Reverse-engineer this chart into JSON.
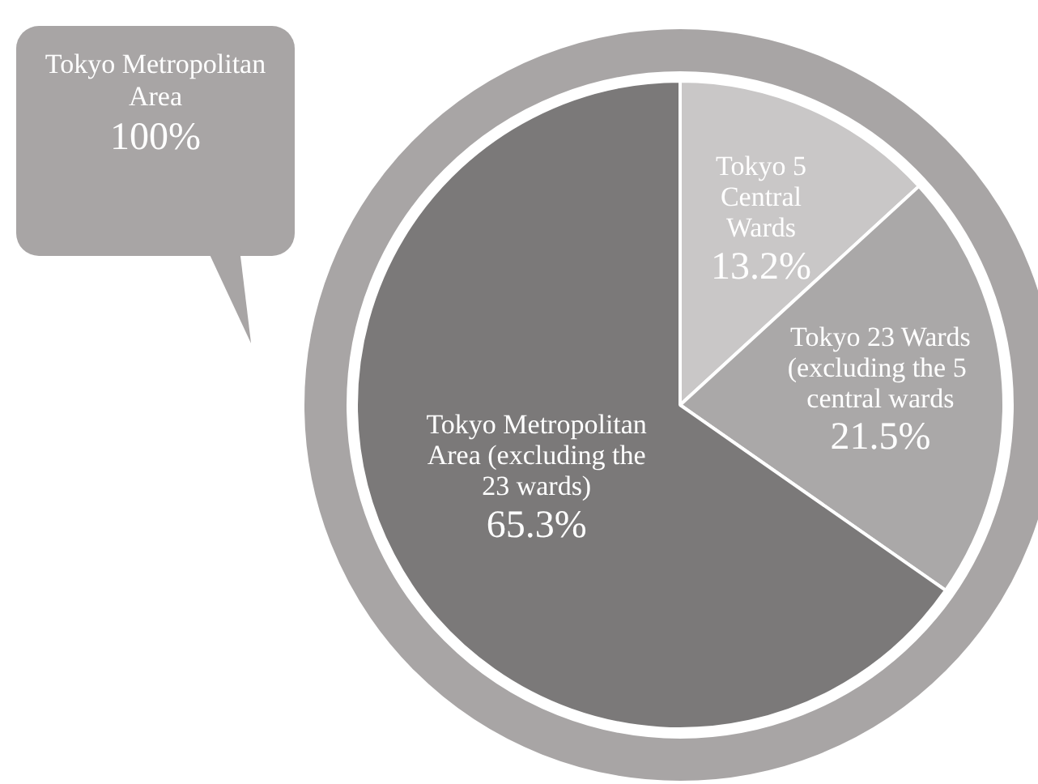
{
  "chart_data": {
    "type": "pie",
    "categories": [
      "Tokyo 5 Central Wards",
      "Tokyo 23 Wards (excluding the 5  central wards",
      "Tokyo Metropolitan Area (excluding the 23 wards)"
    ],
    "values": [
      13.2,
      21.5,
      65.3
    ],
    "value_labels": [
      "13.2%",
      "21.5%",
      "65.3%"
    ],
    "colors": [
      "#c9c7c7",
      "#aaa8a8",
      "#7b7979"
    ],
    "legend": false,
    "annotations": [
      "Tokyo Metropolitan Area",
      "100%"
    ]
  }
}
